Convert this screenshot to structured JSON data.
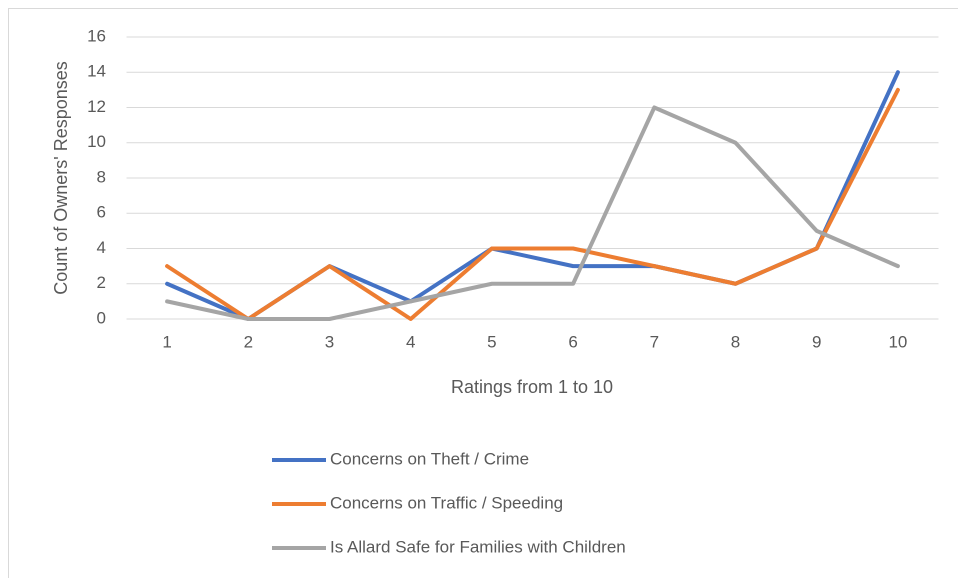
{
  "chart_data": {
    "type": "line",
    "x_label": "Ratings from 1 to 10",
    "y_label": "Count of Owners' Responses",
    "categories": [
      "1",
      "2",
      "3",
      "4",
      "5",
      "6",
      "7",
      "8",
      "9",
      "10"
    ],
    "series": [
      {
        "name": "Concerns on Theft / Crime",
        "color": "#4472c4",
        "values": [
          2,
          0,
          3,
          1,
          4,
          3,
          3,
          2,
          4,
          14
        ]
      },
      {
        "name": "Concerns on Traffic / Speeding",
        "color": "#ed7d31",
        "values": [
          3,
          0,
          3,
          0,
          4,
          4,
          3,
          2,
          4,
          13
        ]
      },
      {
        "name": "Is Allard Safe for Families with Children",
        "color": "#a5a5a5",
        "values": [
          1,
          0,
          0,
          1,
          2,
          2,
          12,
          10,
          5,
          3
        ]
      }
    ],
    "ylim": [
      0,
      16
    ],
    "yticks": [
      0,
      2,
      4,
      6,
      8,
      10,
      12,
      14,
      16
    ],
    "grid": true,
    "legend": "bottom"
  }
}
